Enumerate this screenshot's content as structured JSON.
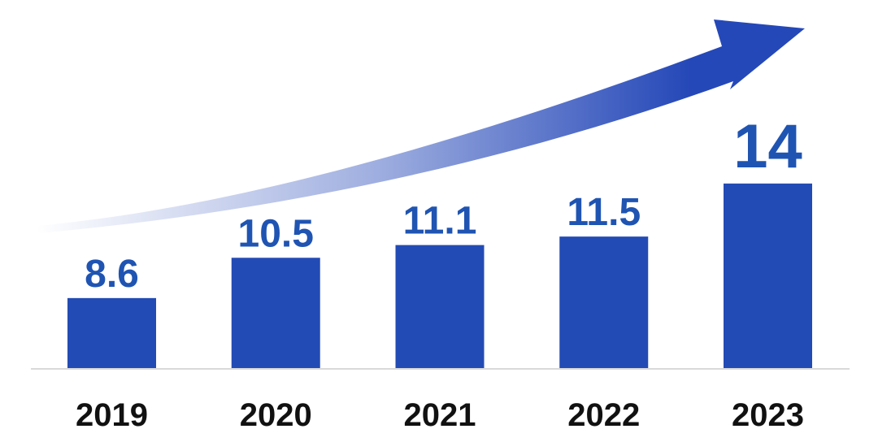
{
  "chart_data": {
    "type": "bar",
    "categories": [
      "2019",
      "2020",
      "2021",
      "2022",
      "2023"
    ],
    "values": [
      8.6,
      10.5,
      11.1,
      11.5,
      14
    ],
    "value_labels": [
      "8.6",
      "10.5",
      "11.1",
      "11.5",
      "14"
    ],
    "title": "",
    "xlabel": "",
    "ylabel": "",
    "ylim": [
      5.3,
      22.5
    ],
    "grid": false,
    "legend": "none",
    "annotations": [
      "upward trend arrow"
    ],
    "colors": {
      "bar": "#234bb5",
      "label": "#1f54b2",
      "arrow": "#2548b8",
      "axis": "#d9d9d9"
    }
  }
}
